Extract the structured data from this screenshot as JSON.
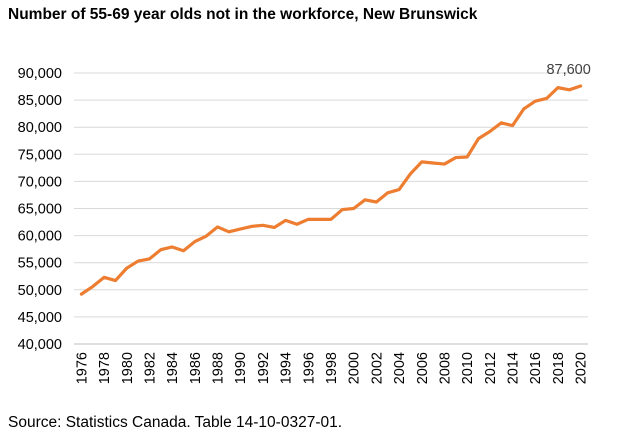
{
  "chart_data": {
    "type": "line",
    "title": "Number of 55-69 year olds not in the workforce, New Brunswick",
    "source": "Source: Statistics Canada. Table 14-10-0327-01.",
    "xlabel": "",
    "ylabel": "",
    "ylim": [
      40000,
      90000
    ],
    "yticks": [
      40000,
      45000,
      50000,
      55000,
      60000,
      65000,
      70000,
      75000,
      80000,
      85000,
      90000
    ],
    "ytick_labels": [
      "40,000",
      "45,000",
      "50,000",
      "55,000",
      "60,000",
      "65,000",
      "70,000",
      "75,000",
      "80,000",
      "85,000",
      "90,000"
    ],
    "xtick_labels": [
      "1976",
      "1978",
      "1980",
      "1982",
      "1984",
      "1986",
      "1988",
      "1990",
      "1992",
      "1994",
      "1996",
      "1998",
      "2000",
      "2002",
      "2004",
      "2006",
      "2008",
      "2010",
      "2012",
      "2014",
      "2016",
      "2018",
      "2020"
    ],
    "grid": true,
    "legend": "none",
    "line_color": "#ED7D31",
    "grid_color": "#D9D9D9",
    "x": [
      1976,
      1977,
      1978,
      1979,
      1980,
      1981,
      1982,
      1983,
      1984,
      1985,
      1986,
      1987,
      1988,
      1989,
      1990,
      1991,
      1992,
      1993,
      1994,
      1995,
      1996,
      1997,
      1998,
      1999,
      2000,
      2001,
      2002,
      2003,
      2004,
      2005,
      2006,
      2007,
      2008,
      2009,
      2010,
      2011,
      2012,
      2013,
      2014,
      2015,
      2016,
      2017,
      2018,
      2019,
      2020
    ],
    "values": [
      49200,
      50600,
      52300,
      51700,
      54000,
      55300,
      55700,
      57400,
      57900,
      57200,
      58900,
      59900,
      61600,
      60700,
      61200,
      61700,
      61900,
      61500,
      62800,
      62100,
      63000,
      63000,
      63000,
      64800,
      65000,
      66600,
      66200,
      67900,
      68500,
      71400,
      73600,
      73400,
      73200,
      74400,
      74500,
      77900,
      79200,
      80800,
      80300,
      83400,
      84800,
      85300,
      87300,
      86900,
      87600
    ],
    "annotations": [
      {
        "x": 2020,
        "text": "87,600"
      }
    ]
  }
}
